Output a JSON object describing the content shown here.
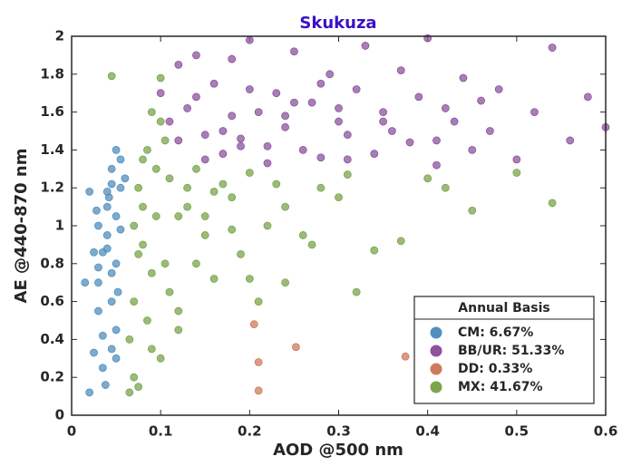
{
  "chart_data": {
    "type": "scatter",
    "title": "Skukuza",
    "xlabel": "AOD @500 nm",
    "ylabel": "AE @440-870 nm",
    "xlim": [
      0,
      0.6
    ],
    "ylim": [
      0,
      2
    ],
    "xticks": [
      0,
      0.1,
      0.2,
      0.3,
      0.4,
      0.5,
      0.6
    ],
    "yticks": [
      0,
      0.2,
      0.4,
      0.6,
      0.8,
      1,
      1.2,
      1.4,
      1.6,
      1.8,
      2
    ],
    "grid": false,
    "legend": "lower right",
    "legend_title": "Annual Basis",
    "series": [
      {
        "name": "CM: 6.67%",
        "color": "#5fa8df",
        "x": [
          0.02,
          0.025,
          0.03,
          0.035,
          0.04,
          0.045,
          0.05,
          0.055,
          0.03,
          0.04,
          0.05,
          0.045,
          0.035,
          0.025,
          0.05,
          0.055,
          0.04,
          0.03,
          0.045,
          0.05,
          0.035,
          0.06,
          0.02,
          0.045,
          0.04,
          0.05,
          0.03,
          0.055,
          0.045,
          0.038,
          0.015,
          0.028,
          0.052,
          0.042
        ],
        "y": [
          0.12,
          0.33,
          0.7,
          0.86,
          1.18,
          1.3,
          1.4,
          1.2,
          1.0,
          0.95,
          0.8,
          0.6,
          0.42,
          0.86,
          0.3,
          1.35,
          1.1,
          0.55,
          0.35,
          1.05,
          0.25,
          1.25,
          1.18,
          0.75,
          0.88,
          0.45,
          0.78,
          0.98,
          1.22,
          0.16,
          0.7,
          1.08,
          0.65,
          1.15
        ]
      },
      {
        "name": "BB/UR: 51.33%",
        "color": "#a561b8",
        "x": [
          0.1,
          0.11,
          0.12,
          0.13,
          0.14,
          0.15,
          0.16,
          0.17,
          0.18,
          0.19,
          0.2,
          0.21,
          0.22,
          0.23,
          0.24,
          0.25,
          0.26,
          0.27,
          0.28,
          0.29,
          0.3,
          0.31,
          0.32,
          0.33,
          0.34,
          0.35,
          0.36,
          0.37,
          0.38,
          0.39,
          0.4,
          0.41,
          0.42,
          0.43,
          0.44,
          0.45,
          0.46,
          0.47,
          0.48,
          0.5,
          0.52,
          0.54,
          0.56,
          0.58,
          0.6,
          0.12,
          0.15,
          0.18,
          0.22,
          0.25,
          0.28,
          0.31,
          0.35,
          0.14,
          0.19,
          0.24,
          0.3,
          0.41,
          0.2,
          0.17
        ],
        "y": [
          1.7,
          1.55,
          1.45,
          1.62,
          1.9,
          1.35,
          1.75,
          1.5,
          1.88,
          1.42,
          1.98,
          1.6,
          1.33,
          1.7,
          1.52,
          1.92,
          1.4,
          1.65,
          1.36,
          1.8,
          1.55,
          1.48,
          1.72,
          1.95,
          1.38,
          1.6,
          1.5,
          1.82,
          1.44,
          1.68,
          1.99,
          1.45,
          1.62,
          1.55,
          1.78,
          1.4,
          1.66,
          1.5,
          1.72,
          1.35,
          1.6,
          1.94,
          1.45,
          1.68,
          1.52,
          1.85,
          1.48,
          1.58,
          1.42,
          1.65,
          1.75,
          1.35,
          1.55,
          1.68,
          1.46,
          1.58,
          1.62,
          1.32,
          1.72,
          1.38
        ]
      },
      {
        "name": "DD: 0.33%",
        "color": "#f0926c",
        "x": [
          0.205,
          0.21,
          0.252,
          0.21,
          0.375
        ],
        "y": [
          0.48,
          0.28,
          0.36,
          0.13,
          0.31
        ]
      },
      {
        "name": "MX: 41.67%",
        "color": "#8fc25a",
        "x": [
          0.045,
          0.065,
          0.07,
          0.075,
          0.08,
          0.085,
          0.09,
          0.095,
          0.1,
          0.105,
          0.11,
          0.12,
          0.13,
          0.14,
          0.15,
          0.16,
          0.17,
          0.18,
          0.19,
          0.2,
          0.22,
          0.24,
          0.26,
          0.28,
          0.3,
          0.32,
          0.34,
          0.37,
          0.4,
          0.42,
          0.45,
          0.5,
          0.54,
          0.07,
          0.08,
          0.09,
          0.1,
          0.12,
          0.14,
          0.16,
          0.18,
          0.07,
          0.085,
          0.095,
          0.11,
          0.13,
          0.15,
          0.21,
          0.24,
          0.27,
          0.31,
          0.065,
          0.075,
          0.09,
          0.1,
          0.12,
          0.105,
          0.075,
          0.08,
          0.2,
          0.23
        ],
        "y": [
          1.79,
          0.12,
          0.6,
          1.2,
          0.9,
          1.4,
          0.35,
          1.05,
          1.78,
          0.8,
          1.25,
          0.45,
          1.1,
          1.3,
          0.95,
          0.72,
          1.22,
          1.15,
          0.85,
          1.28,
          1.0,
          0.7,
          0.95,
          1.2,
          1.15,
          0.65,
          0.87,
          0.92,
          1.25,
          1.2,
          1.08,
          1.28,
          1.12,
          1.0,
          1.1,
          0.75,
          1.55,
          1.05,
          0.8,
          1.18,
          0.98,
          0.2,
          0.5,
          1.3,
          0.65,
          1.2,
          1.05,
          0.6,
          1.1,
          0.9,
          1.27,
          0.4,
          0.85,
          1.6,
          0.3,
          0.55,
          1.45,
          0.15,
          1.35,
          0.72,
          1.22
        ]
      }
    ]
  }
}
